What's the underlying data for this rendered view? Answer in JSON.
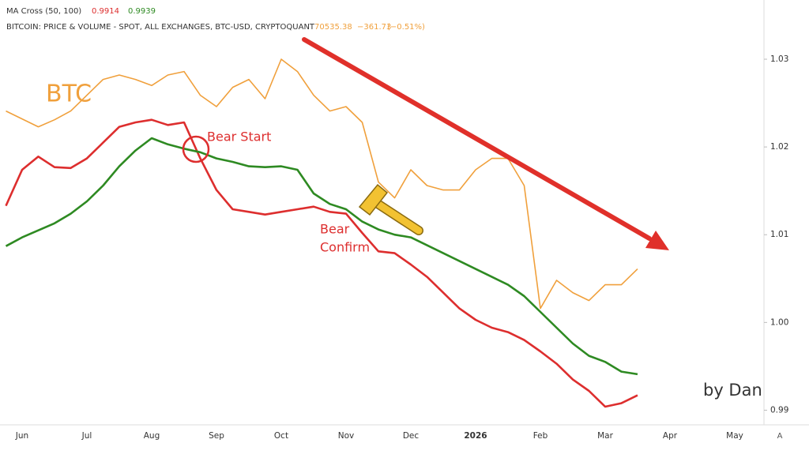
{
  "chart_data": {
    "type": "line",
    "header": {
      "indicator": "MA Cross (50, 100)",
      "indicator_values": [
        0.9914,
        0.9939
      ],
      "source": "BITCOIN: PRICE & VOLUME - SPOT, ALL EXCHANGES, BTC-USD, CRYPTOQUANT",
      "price": 70535.38,
      "change": "−361.73",
      "change_pct": "(−0.51%)"
    },
    "annotations": {
      "bear_start": "Bear Start",
      "bear_confirm": [
        "Bear",
        "Confirm"
      ],
      "author": "by Dan",
      "scale_button": "A"
    },
    "categories": [
      null,
      "Jun",
      null,
      null,
      null,
      "Jul",
      null,
      null,
      null,
      "Aug",
      null,
      null,
      null,
      "Sep",
      null,
      null,
      null,
      "Oct",
      null,
      null,
      null,
      "Nov",
      null,
      null,
      null,
      "Dec",
      null,
      null,
      null,
      "2026",
      null,
      null,
      null,
      "Feb",
      null,
      null,
      null,
      "Mar",
      null,
      null,
      null,
      "Apr",
      null,
      null,
      null,
      "May",
      null
    ],
    "series": [
      {
        "name": "BTC",
        "color": "#f0a03c",
        "values": [
          1.0241,
          1.0232,
          1.0223,
          1.0231,
          1.0241,
          1.0259,
          1.0277,
          1.0282,
          1.0277,
          1.027,
          1.0282,
          1.0286,
          1.0259,
          1.0246,
          1.0268,
          1.0277,
          1.0255,
          1.03,
          1.0286,
          1.0259,
          1.0241,
          1.0246,
          1.0228,
          1.016,
          1.0142,
          1.0174,
          1.0156,
          1.0151,
          1.0151,
          1.0174,
          1.0187,
          1.0187,
          1.0156,
          1.0016,
          1.0048,
          1.0034,
          1.0025,
          1.0043,
          1.0043,
          1.0061,
          null,
          null,
          null,
          null,
          null,
          null,
          null
        ]
      },
      {
        "color": "#dd2e2e",
        "values": [
          1.0133,
          1.0174,
          1.0189,
          1.0177,
          1.0176,
          1.0187,
          1.0205,
          1.0223,
          1.0228,
          1.0231,
          1.0225,
          1.0228,
          1.0187,
          1.0151,
          1.0129,
          1.0126,
          1.0123,
          1.0126,
          1.0129,
          1.0132,
          1.0126,
          1.0124,
          1.0102,
          1.0081,
          1.0079,
          1.0066,
          1.0052,
          1.0034,
          1.0016,
          1.0003,
          0.9994,
          0.9989,
          0.998,
          0.9967,
          0.9953,
          0.9935,
          0.9922,
          0.9904,
          0.9908,
          0.9917,
          null,
          null,
          null,
          null,
          null,
          null,
          null
        ]
      },
      {
        "color": "#2e8a22",
        "values": [
          1.0087,
          1.0097,
          1.0105,
          1.0113,
          1.0124,
          1.0138,
          1.0156,
          1.0178,
          1.0196,
          1.021,
          1.0203,
          1.0198,
          1.0194,
          1.0187,
          1.0183,
          1.0178,
          1.0177,
          1.0178,
          1.0174,
          1.0147,
          1.0135,
          1.0129,
          1.0115,
          1.0106,
          1.01,
          1.0097,
          1.0088,
          1.0079,
          1.007,
          1.0061,
          1.0052,
          1.0043,
          1.003,
          1.0012,
          0.9994,
          0.9976,
          0.9962,
          0.9955,
          0.9944,
          0.9941,
          null,
          null,
          null,
          null,
          null,
          null,
          null
        ]
      }
    ],
    "ylim": [
      0.9886,
      1.0363
    ],
    "yticks": [
      0.99,
      {
        "value": 1,
        "label": "1.00"
      },
      1.01,
      1.02,
      1.03
    ],
    "grid": false
  }
}
